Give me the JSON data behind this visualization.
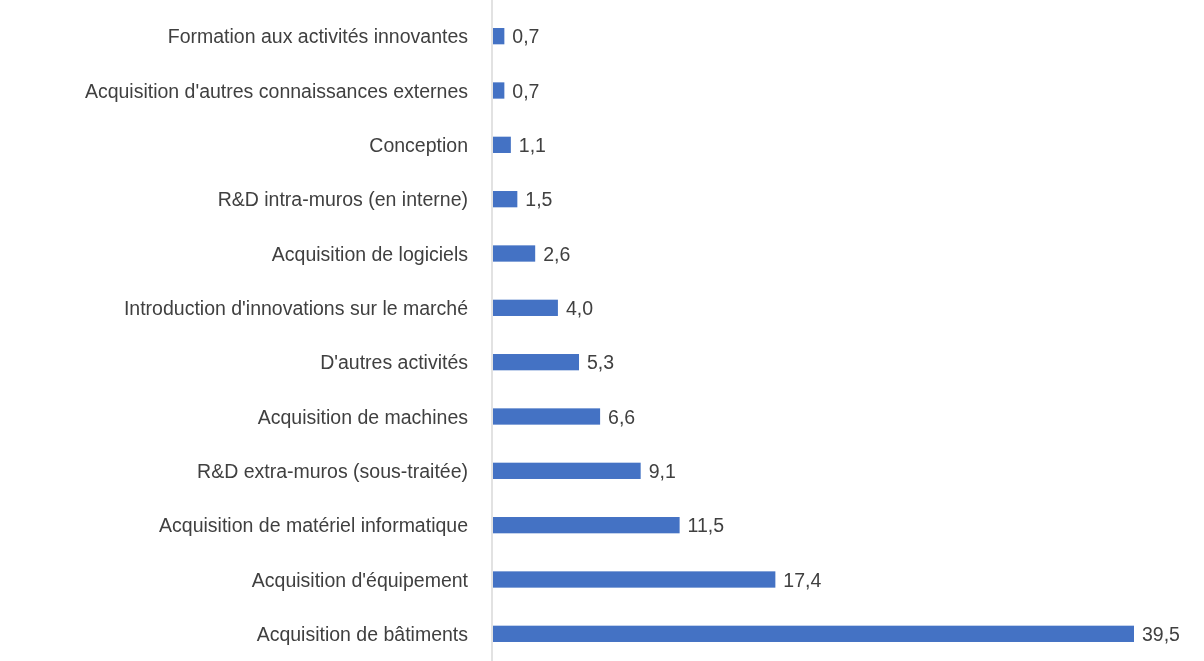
{
  "chart_data": {
    "type": "bar",
    "orientation": "horizontal",
    "categories": [
      "Formation aux activités innovantes",
      "Acquisition d'autres connaissances externes",
      "Conception",
      "R&D intra-muros (en interne)",
      "Acquisition de logiciels",
      "Introduction d'innovations sur le marché",
      "D'autres activités",
      "Acquisition de machines",
      "R&D extra-muros (sous-traitée)",
      "Acquisition de matériel informatique",
      "Acquisition d'équipement",
      "Acquisition de bâtiments"
    ],
    "values": [
      0.7,
      0.7,
      1.1,
      1.5,
      2.6,
      4.0,
      5.3,
      6.6,
      9.1,
      11.5,
      17.4,
      39.5
    ],
    "value_labels": [
      "0,7",
      "0,7",
      "1,1",
      "1,5",
      "2,6",
      "4,0",
      "5,3",
      "6,6",
      "9,1",
      "11,5",
      "17,4",
      "39,5"
    ],
    "color": "#4472c4"
  }
}
